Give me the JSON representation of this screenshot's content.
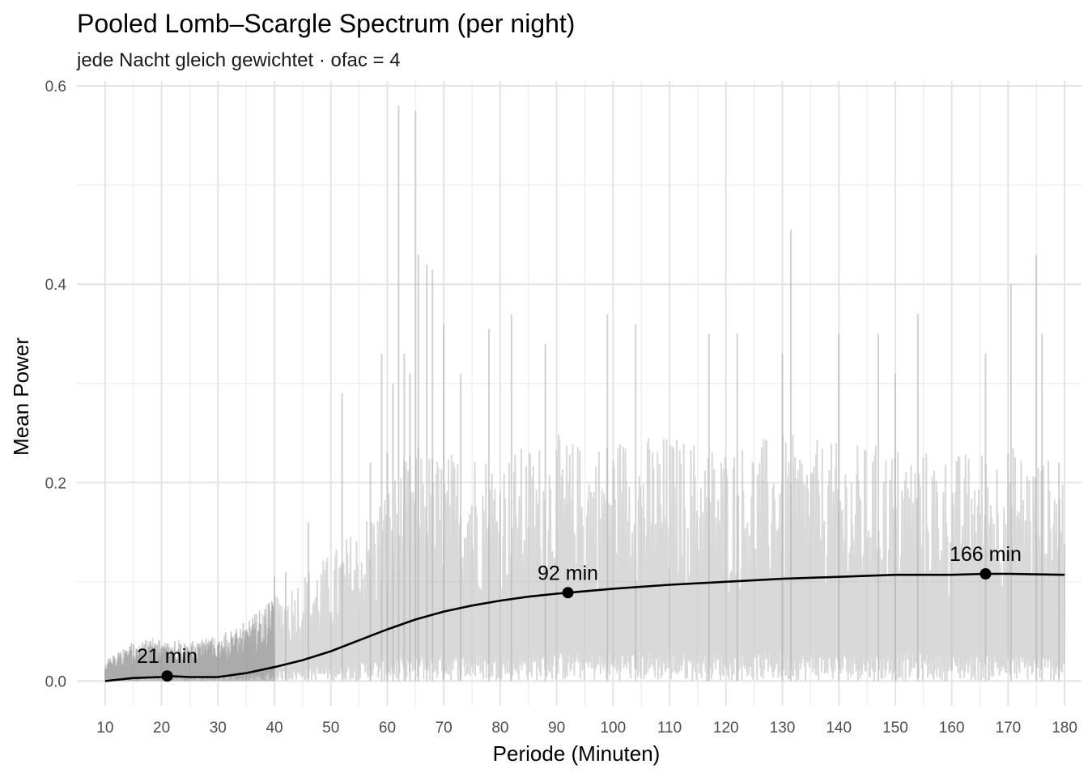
{
  "chart_data": {
    "type": "line",
    "title": "Pooled Lomb–Scargle Spectrum (per night)",
    "subtitle": "jede Nacht gleich gewichtet · ofac = 4",
    "xlabel": "Periode (Minuten)",
    "ylabel": "Mean Power",
    "xlim": [
      5,
      183
    ],
    "ylim": [
      -0.025,
      0.605
    ],
    "x_ticks": [
      10,
      20,
      30,
      40,
      50,
      60,
      70,
      80,
      90,
      100,
      110,
      120,
      130,
      140,
      150,
      160,
      170,
      180
    ],
    "y_ticks": [
      0.0,
      0.2,
      0.4,
      0.6
    ],
    "y_tick_labels": [
      "0.0",
      "0.2",
      "0.4",
      "0.6"
    ],
    "grid": true,
    "legend": "none",
    "series": [
      {
        "role": "raw spectrum (noisy, semi-transparent grey)",
        "envelope": {
          "x": [
            10,
            15,
            20,
            25,
            30,
            35,
            40,
            45,
            50,
            55,
            60,
            65,
            70,
            75,
            80,
            85,
            90,
            95,
            100,
            110,
            120,
            130,
            140,
            150,
            160,
            170,
            180
          ],
          "upper": [
            0.02,
            0.04,
            0.045,
            0.04,
            0.045,
            0.06,
            0.085,
            0.11,
            0.13,
            0.16,
            0.2,
            0.24,
            0.23,
            0.24,
            0.23,
            0.24,
            0.25,
            0.24,
            0.25,
            0.25,
            0.24,
            0.25,
            0.24,
            0.24,
            0.23,
            0.24,
            0.22
          ]
        },
        "spikes": [
          {
            "x": 40,
            "y": 0.105
          },
          {
            "x": 42,
            "y": 0.11
          },
          {
            "x": 46,
            "y": 0.16
          },
          {
            "x": 52,
            "y": 0.29
          },
          {
            "x": 57,
            "y": 0.22
          },
          {
            "x": 59,
            "y": 0.33
          },
          {
            "x": 60,
            "y": 0.23
          },
          {
            "x": 61,
            "y": 0.3
          },
          {
            "x": 62,
            "y": 0.58
          },
          {
            "x": 63,
            "y": 0.33
          },
          {
            "x": 64,
            "y": 0.31
          },
          {
            "x": 65,
            "y": 0.575
          },
          {
            "x": 65.5,
            "y": 0.43
          },
          {
            "x": 67,
            "y": 0.42
          },
          {
            "x": 68,
            "y": 0.415
          },
          {
            "x": 70,
            "y": 0.36
          },
          {
            "x": 73,
            "y": 0.31
          },
          {
            "x": 78,
            "y": 0.355
          },
          {
            "x": 82,
            "y": 0.37
          },
          {
            "x": 88,
            "y": 0.34
          },
          {
            "x": 99,
            "y": 0.37
          },
          {
            "x": 104,
            "y": 0.36
          },
          {
            "x": 117,
            "y": 0.35
          },
          {
            "x": 122,
            "y": 0.35
          },
          {
            "x": 130,
            "y": 0.33
          },
          {
            "x": 131.5,
            "y": 0.455
          },
          {
            "x": 140,
            "y": 0.35
          },
          {
            "x": 147,
            "y": 0.35
          },
          {
            "x": 150,
            "y": 0.31
          },
          {
            "x": 154,
            "y": 0.37
          },
          {
            "x": 166,
            "y": 0.33
          },
          {
            "x": 170.5,
            "y": 0.4
          },
          {
            "x": 175,
            "y": 0.43
          },
          {
            "x": 176,
            "y": 0.35
          },
          {
            "x": 179,
            "y": 0.22
          }
        ]
      },
      {
        "role": "smoothed mean (black line)",
        "x": [
          10,
          15,
          20,
          21,
          25,
          30,
          35,
          40,
          45,
          50,
          55,
          60,
          65,
          70,
          75,
          80,
          85,
          90,
          92,
          100,
          110,
          120,
          130,
          140,
          150,
          160,
          166,
          170,
          180
        ],
        "y": [
          0.0,
          0.003,
          0.004,
          0.005,
          0.004,
          0.004,
          0.008,
          0.014,
          0.021,
          0.03,
          0.041,
          0.052,
          0.062,
          0.07,
          0.076,
          0.081,
          0.085,
          0.088,
          0.089,
          0.093,
          0.097,
          0.1,
          0.103,
          0.105,
          0.107,
          0.107,
          0.108,
          0.108,
          0.107
        ]
      }
    ],
    "annotations": [
      {
        "label": "21 min",
        "x": 21,
        "y": 0.005
      },
      {
        "label": "92 min",
        "x": 92,
        "y": 0.089
      },
      {
        "label": "166 min",
        "x": 166,
        "y": 0.108
      }
    ]
  }
}
